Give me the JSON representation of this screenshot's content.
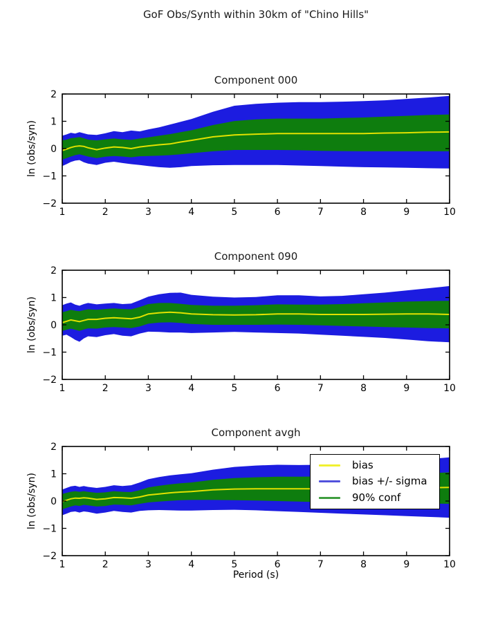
{
  "figure": {
    "title": "GoF Obs/Synth within 30km of \"Chino Hills\"",
    "xlabel": "Period (s)",
    "ylabel": "ln (obs/syn)",
    "background": "#ffffff"
  },
  "colors": {
    "bias_line": "#e2e200",
    "sigma_band": "#1c1ce0",
    "conf_band": "#0e7d0e",
    "axis": "#000000",
    "legend_bias_swatch": "#f0f030",
    "legend_sigma_swatch": "#5252dc",
    "legend_conf_swatch": "#3f9e3f"
  },
  "legend": {
    "position": "upper right of bottom subplot",
    "items": [
      {
        "label": "bias"
      },
      {
        "label": "bias +/- sigma"
      },
      {
        "label": "90% conf"
      }
    ]
  },
  "chart_data": [
    {
      "type": "area",
      "title": "Component 000",
      "ylabel": "ln (obs/syn)",
      "xlim": [
        1,
        10
      ],
      "ylim": [
        -2,
        2
      ],
      "xticks": [
        1,
        2,
        3,
        4,
        5,
        6,
        7,
        8,
        9,
        10
      ],
      "yticks": [
        -2,
        -1,
        0,
        1,
        2
      ],
      "grid": false,
      "x": [
        1.0,
        1.1,
        1.2,
        1.3,
        1.4,
        1.5,
        1.6,
        1.8,
        2.0,
        2.2,
        2.4,
        2.6,
        2.8,
        3.0,
        3.25,
        3.5,
        3.75,
        4.0,
        4.5,
        5.0,
        5.5,
        6.0,
        6.5,
        7.0,
        7.5,
        8.0,
        8.5,
        9.0,
        9.5,
        10.0
      ],
      "series": [
        {
          "name": "bias",
          "values": [
            -0.07,
            -0.02,
            0.04,
            0.08,
            0.1,
            0.08,
            0.03,
            -0.04,
            0.02,
            0.06,
            0.04,
            0.0,
            0.06,
            0.1,
            0.14,
            0.17,
            0.24,
            0.3,
            0.43,
            0.5,
            0.53,
            0.55,
            0.55,
            0.55,
            0.55,
            0.55,
            0.57,
            0.58,
            0.6,
            0.61
          ]
        },
        {
          "name": "bias plus sigma",
          "values": [
            0.47,
            0.52,
            0.58,
            0.55,
            0.6,
            0.56,
            0.52,
            0.5,
            0.56,
            0.64,
            0.6,
            0.66,
            0.63,
            0.7,
            0.78,
            0.88,
            0.98,
            1.08,
            1.35,
            1.57,
            1.64,
            1.68,
            1.7,
            1.7,
            1.72,
            1.74,
            1.77,
            1.82,
            1.87,
            1.93
          ]
        },
        {
          "name": "bias minus sigma",
          "values": [
            -0.64,
            -0.57,
            -0.49,
            -0.44,
            -0.42,
            -0.5,
            -0.55,
            -0.6,
            -0.52,
            -0.48,
            -0.53,
            -0.57,
            -0.6,
            -0.64,
            -0.68,
            -0.7,
            -0.68,
            -0.64,
            -0.61,
            -0.6,
            -0.6,
            -0.6,
            -0.62,
            -0.64,
            -0.66,
            -0.68,
            -0.69,
            -0.7,
            -0.72,
            -0.73
          ]
        },
        {
          "name": "90% conf upper",
          "values": [
            0.3,
            0.33,
            0.38,
            0.4,
            0.42,
            0.38,
            0.33,
            0.3,
            0.34,
            0.37,
            0.34,
            0.32,
            0.37,
            0.41,
            0.47,
            0.53,
            0.6,
            0.67,
            0.86,
            1.01,
            1.07,
            1.1,
            1.1,
            1.1,
            1.12,
            1.14,
            1.17,
            1.2,
            1.23,
            1.25
          ]
        },
        {
          "name": "90% conf lower",
          "values": [
            -0.4,
            -0.35,
            -0.29,
            -0.24,
            -0.21,
            -0.25,
            -0.29,
            -0.35,
            -0.3,
            -0.27,
            -0.29,
            -0.32,
            -0.28,
            -0.27,
            -0.26,
            -0.24,
            -0.21,
            -0.17,
            -0.1,
            -0.05,
            -0.05,
            -0.05,
            -0.06,
            -0.08,
            -0.09,
            -0.1,
            -0.1,
            -0.1,
            -0.1,
            -0.1
          ]
        }
      ]
    },
    {
      "type": "area",
      "title": "Component 090",
      "ylabel": "ln (obs/syn)",
      "xlim": [
        1,
        10
      ],
      "ylim": [
        -2,
        2
      ],
      "xticks": [
        1,
        2,
        3,
        4,
        5,
        6,
        7,
        8,
        9,
        10
      ],
      "yticks": [
        -2,
        -1,
        0,
        1,
        2
      ],
      "grid": false,
      "x": [
        1.0,
        1.1,
        1.2,
        1.3,
        1.4,
        1.5,
        1.6,
        1.8,
        2.0,
        2.2,
        2.4,
        2.6,
        2.8,
        3.0,
        3.25,
        3.5,
        3.75,
        4.0,
        4.5,
        5.0,
        5.5,
        6.0,
        6.5,
        7.0,
        7.5,
        8.0,
        8.5,
        9.0,
        9.5,
        10.0
      ],
      "series": [
        {
          "name": "bias",
          "values": [
            0.08,
            0.13,
            0.18,
            0.15,
            0.12,
            0.16,
            0.2,
            0.2,
            0.24,
            0.26,
            0.24,
            0.22,
            0.28,
            0.4,
            0.44,
            0.46,
            0.44,
            0.4,
            0.37,
            0.36,
            0.37,
            0.4,
            0.4,
            0.38,
            0.38,
            0.38,
            0.39,
            0.4,
            0.4,
            0.38
          ]
        },
        {
          "name": "bias plus sigma",
          "values": [
            0.72,
            0.78,
            0.82,
            0.74,
            0.7,
            0.76,
            0.8,
            0.75,
            0.78,
            0.8,
            0.76,
            0.78,
            0.9,
            1.03,
            1.12,
            1.17,
            1.18,
            1.1,
            1.03,
            1.0,
            1.02,
            1.08,
            1.08,
            1.04,
            1.06,
            1.12,
            1.18,
            1.26,
            1.34,
            1.42
          ]
        },
        {
          "name": "bias minus sigma",
          "values": [
            -0.4,
            -0.36,
            -0.45,
            -0.55,
            -0.62,
            -0.5,
            -0.42,
            -0.45,
            -0.38,
            -0.34,
            -0.4,
            -0.42,
            -0.32,
            -0.25,
            -0.26,
            -0.28,
            -0.28,
            -0.3,
            -0.28,
            -0.26,
            -0.28,
            -0.3,
            -0.32,
            -0.36,
            -0.4,
            -0.44,
            -0.48,
            -0.54,
            -0.6,
            -0.64
          ]
        },
        {
          "name": "90% conf upper",
          "values": [
            0.46,
            0.5,
            0.55,
            0.52,
            0.5,
            0.54,
            0.57,
            0.55,
            0.58,
            0.6,
            0.58,
            0.57,
            0.65,
            0.76,
            0.8,
            0.8,
            0.77,
            0.73,
            0.7,
            0.7,
            0.72,
            0.75,
            0.74,
            0.74,
            0.76,
            0.79,
            0.82,
            0.85,
            0.87,
            0.88
          ]
        },
        {
          "name": "90% conf lower",
          "values": [
            -0.22,
            -0.18,
            -0.14,
            -0.18,
            -0.22,
            -0.17,
            -0.13,
            -0.14,
            -0.1,
            -0.08,
            -0.1,
            -0.12,
            -0.06,
            0.04,
            0.08,
            0.09,
            0.07,
            0.03,
            0.0,
            0.0,
            0.0,
            0.01,
            0.0,
            -0.02,
            -0.04,
            -0.06,
            -0.08,
            -0.1,
            -0.12,
            -0.13
          ]
        }
      ]
    },
    {
      "type": "area",
      "title": "Component avgh",
      "xlabel": "Period (s)",
      "ylabel": "ln (obs/syn)",
      "xlim": [
        1,
        10
      ],
      "ylim": [
        -2,
        2
      ],
      "xticks": [
        1,
        2,
        3,
        4,
        5,
        6,
        7,
        8,
        9,
        10
      ],
      "yticks": [
        -2,
        -1,
        0,
        1,
        2
      ],
      "grid": false,
      "legend_visible": true,
      "x": [
        1.0,
        1.1,
        1.2,
        1.3,
        1.4,
        1.5,
        1.6,
        1.8,
        2.0,
        2.2,
        2.4,
        2.6,
        2.8,
        3.0,
        3.25,
        3.5,
        3.75,
        4.0,
        4.5,
        5.0,
        5.5,
        6.0,
        6.5,
        7.0,
        7.5,
        8.0,
        8.5,
        9.0,
        9.5,
        10.0
      ],
      "series": [
        {
          "name": "bias",
          "values": [
            -0.02,
            0.03,
            0.08,
            0.11,
            0.1,
            0.12,
            0.11,
            0.06,
            0.08,
            0.13,
            0.12,
            0.1,
            0.15,
            0.22,
            0.26,
            0.3,
            0.33,
            0.35,
            0.41,
            0.44,
            0.45,
            0.45,
            0.45,
            0.45,
            0.46,
            0.47,
            0.47,
            0.48,
            0.49,
            0.5
          ]
        },
        {
          "name": "bias plus sigma",
          "values": [
            0.42,
            0.48,
            0.54,
            0.56,
            0.52,
            0.55,
            0.52,
            0.48,
            0.52,
            0.58,
            0.55,
            0.58,
            0.68,
            0.8,
            0.88,
            0.94,
            0.98,
            1.02,
            1.15,
            1.25,
            1.3,
            1.33,
            1.32,
            1.33,
            1.36,
            1.4,
            1.44,
            1.49,
            1.54,
            1.6
          ]
        },
        {
          "name": "bias minus sigma",
          "values": [
            -0.52,
            -0.46,
            -0.4,
            -0.38,
            -0.42,
            -0.38,
            -0.4,
            -0.46,
            -0.42,
            -0.36,
            -0.4,
            -0.42,
            -0.36,
            -0.34,
            -0.33,
            -0.34,
            -0.35,
            -0.35,
            -0.33,
            -0.32,
            -0.34,
            -0.37,
            -0.4,
            -0.43,
            -0.46,
            -0.49,
            -0.52,
            -0.55,
            -0.58,
            -0.61
          ]
        },
        {
          "name": "90% conf upper",
          "values": [
            0.26,
            0.3,
            0.34,
            0.36,
            0.34,
            0.36,
            0.34,
            0.3,
            0.32,
            0.36,
            0.34,
            0.33,
            0.4,
            0.5,
            0.56,
            0.61,
            0.65,
            0.68,
            0.78,
            0.84,
            0.87,
            0.89,
            0.89,
            0.9,
            0.92,
            0.94,
            0.97,
            1.0,
            1.02,
            1.05
          ]
        },
        {
          "name": "90% conf lower",
          "values": [
            -0.3,
            -0.25,
            -0.2,
            -0.16,
            -0.18,
            -0.14,
            -0.16,
            -0.2,
            -0.18,
            -0.13,
            -0.14,
            -0.16,
            -0.1,
            -0.05,
            -0.02,
            0.01,
            0.03,
            0.04,
            0.04,
            0.03,
            0.02,
            0.0,
            -0.02,
            -0.04,
            -0.05,
            -0.06,
            -0.07,
            -0.08,
            -0.09,
            -0.1
          ]
        }
      ]
    }
  ]
}
